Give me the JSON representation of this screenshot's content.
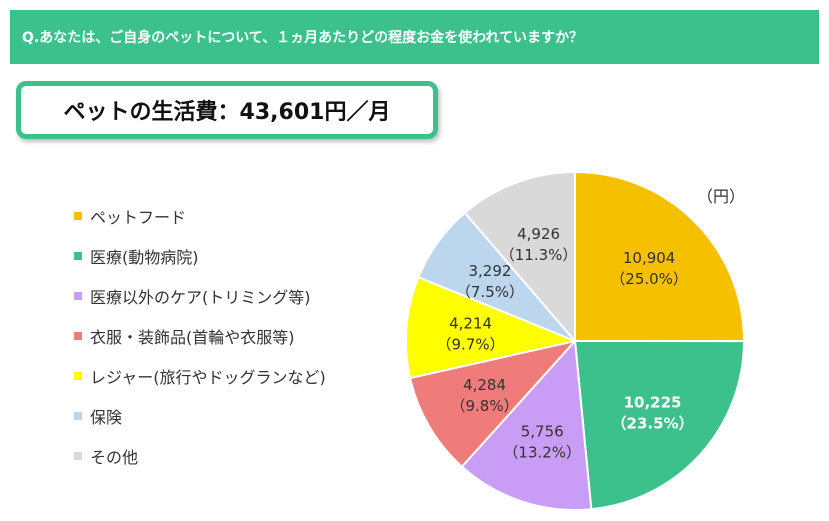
{
  "header": {
    "question": "Q.あなたは、ご自身のペットについて、１ヵ月あたりどの程度お金を使われていますか？"
  },
  "summary": {
    "text": "ペットの生活費：43,601円／月"
  },
  "chart_data": {
    "type": "pie",
    "unit_label": "（円）",
    "slices": [
      {
        "name": "ペットフード",
        "value": 10904,
        "value_label": "10,904",
        "percent_label": "（25.0%）",
        "color": "#f5c000",
        "label_color": "#333333",
        "bold": false
      },
      {
        "name": "医療(動物病院)",
        "value": 10225,
        "value_label": "10,225",
        "percent_label": "（23.5%）",
        "color": "#3cc08c",
        "label_color": "#ffffff",
        "bold": true
      },
      {
        "name": "医療以外のケア(トリミング等)",
        "value": 5756,
        "value_label": "5,756",
        "percent_label": "（13.2%）",
        "color": "#c99cf5",
        "label_color": "#333333",
        "bold": false
      },
      {
        "name": "衣服・装飾品(首輪や衣服等)",
        "value": 4284,
        "value_label": "4,284",
        "percent_label": "（9.8%）",
        "color": "#f07b7b",
        "label_color": "#333333",
        "bold": false
      },
      {
        "name": "レジャー(旅行やドッグランなど)",
        "value": 4214,
        "value_label": "4,214",
        "percent_label": "（9.7%）",
        "color": "#ffff00",
        "label_color": "#333333",
        "bold": false
      },
      {
        "name": "保険",
        "value": 3292,
        "value_label": "3,292",
        "percent_label": "（7.5%）",
        "color": "#bcd6ee",
        "label_color": "#333333",
        "bold": false
      },
      {
        "name": "その他",
        "value": 4926,
        "value_label": "4,926",
        "percent_label": "（11.3%）",
        "color": "#d9d9d9",
        "label_color": "#333333",
        "bold": false
      }
    ]
  }
}
